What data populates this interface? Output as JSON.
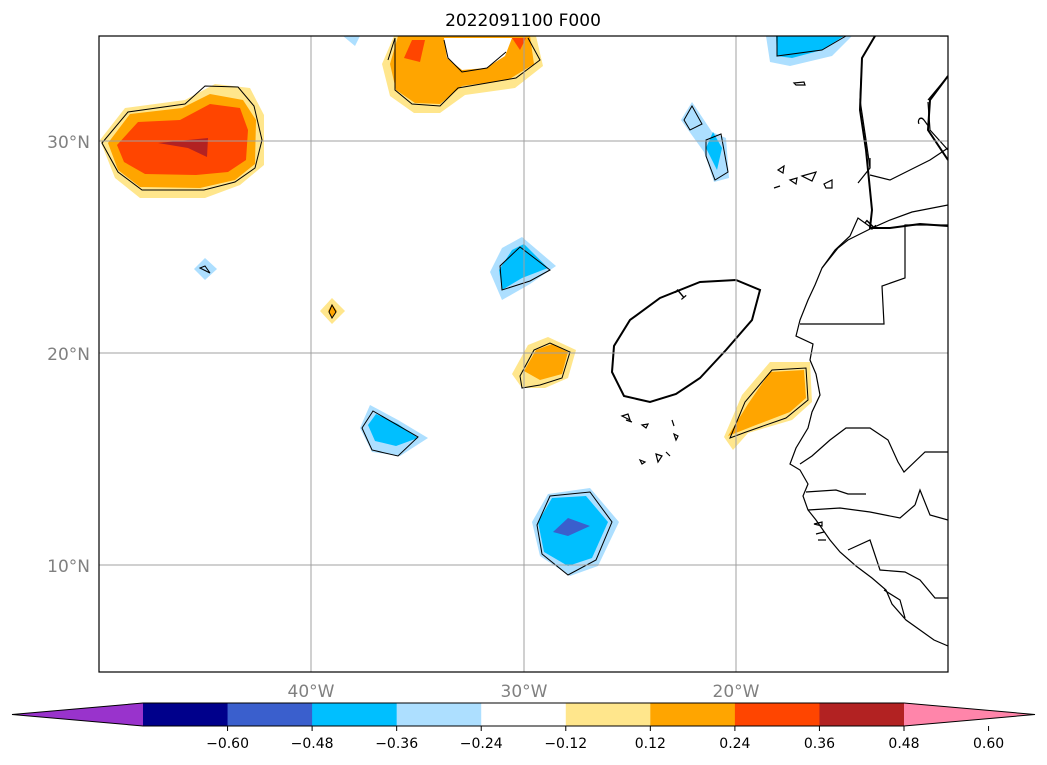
{
  "title": "2022091100 F000",
  "latitude_labels": [
    "30°N",
    "20°N",
    "10°N"
  ],
  "longitude_labels": [
    "40°W",
    "30°W",
    "20°W"
  ],
  "contour_labels": [
    "1",
    "2",
    "1"
  ],
  "colorbar": {
    "tick_labels": [
      "−0.60",
      "−0.48",
      "−0.36",
      "−0.24",
      "−0.12",
      "0.12",
      "0.24",
      "0.36",
      "0.48",
      "0.60"
    ],
    "colors": [
      "#9933cc",
      "#00008b",
      "#3a5fcd",
      "#00bfff",
      "#addfff",
      "#ffffff",
      "#ffe68c",
      "#ffa500",
      "#ff4500",
      "#b22222",
      "#ff85aa"
    ],
    "extend": "both"
  },
  "fill_colors": {
    "light_yellow": "#ffe68c",
    "orange": "#ffa500",
    "orange_red": "#ff4500",
    "dark_red": "#b22222",
    "light_blue": "#addfff",
    "deep_sky_blue": "#00bfff",
    "royal_blue": "#3a5fcd"
  }
}
